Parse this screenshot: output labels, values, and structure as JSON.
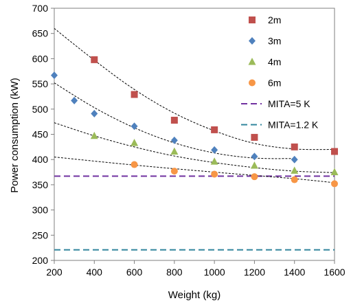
{
  "chart_data": {
    "type": "scatter",
    "title": "",
    "xlabel": "Weight (kg)",
    "ylabel": "Power consumption (kW)",
    "xlim": [
      200,
      1600
    ],
    "ylim": [
      200,
      700
    ],
    "xticks": [
      200,
      400,
      600,
      800,
      1000,
      1200,
      1400,
      1600
    ],
    "yticks": [
      200,
      250,
      300,
      350,
      400,
      450,
      500,
      550,
      600,
      650,
      700
    ],
    "grid": false,
    "legend_position": "top-right",
    "series": [
      {
        "name": "2m",
        "marker": "square",
        "color": "#C0504D",
        "x": [
          400,
          600,
          800,
          1000,
          1200,
          1400,
          1600
        ],
        "y": [
          598,
          529,
          478,
          459,
          444,
          425,
          416
        ],
        "trend": [
          [
            200,
            660
          ],
          [
            400,
            597
          ],
          [
            600,
            539
          ],
          [
            800,
            492
          ],
          [
            1000,
            457
          ],
          [
            1200,
            432
          ],
          [
            1400,
            421
          ],
          [
            1600,
            420
          ]
        ]
      },
      {
        "name": "3m",
        "marker": "diamond",
        "color": "#4F81BD",
        "x": [
          200,
          300,
          400,
          600,
          800,
          1000,
          1200,
          1400
        ],
        "y": [
          567,
          517,
          491,
          466,
          438,
          419,
          406,
          400
        ],
        "trend": [
          [
            200,
            552
          ],
          [
            400,
            503
          ],
          [
            600,
            463
          ],
          [
            800,
            433
          ],
          [
            1000,
            413
          ],
          [
            1200,
            403
          ],
          [
            1400,
            402
          ]
        ]
      },
      {
        "name": "4m",
        "marker": "triangle",
        "color": "#9BBB59",
        "x": [
          400,
          600,
          800,
          1000,
          1200,
          1400,
          1600
        ],
        "y": [
          447,
          433,
          416,
          396,
          388,
          378,
          375
        ],
        "trend": [
          [
            200,
            473
          ],
          [
            400,
            447
          ],
          [
            600,
            425
          ],
          [
            800,
            407
          ],
          [
            1000,
            394
          ],
          [
            1200,
            384
          ],
          [
            1400,
            377
          ],
          [
            1600,
            374
          ]
        ]
      },
      {
        "name": "6m",
        "marker": "circle",
        "color": "#F79646",
        "x": [
          600,
          800,
          1000,
          1200,
          1400,
          1600
        ],
        "y": [
          390,
          377,
          371,
          366,
          360,
          352
        ],
        "trend": [
          [
            200,
            405
          ],
          [
            600,
            389
          ],
          [
            1000,
            375
          ],
          [
            1400,
            362
          ],
          [
            1600,
            354
          ]
        ]
      }
    ],
    "reference_lines": [
      {
        "name": "MITA=5 K",
        "y": 367,
        "color": "#7030A0"
      },
      {
        "name": "MITA=1.2 K",
        "y": 221,
        "color": "#31859C"
      }
    ]
  }
}
